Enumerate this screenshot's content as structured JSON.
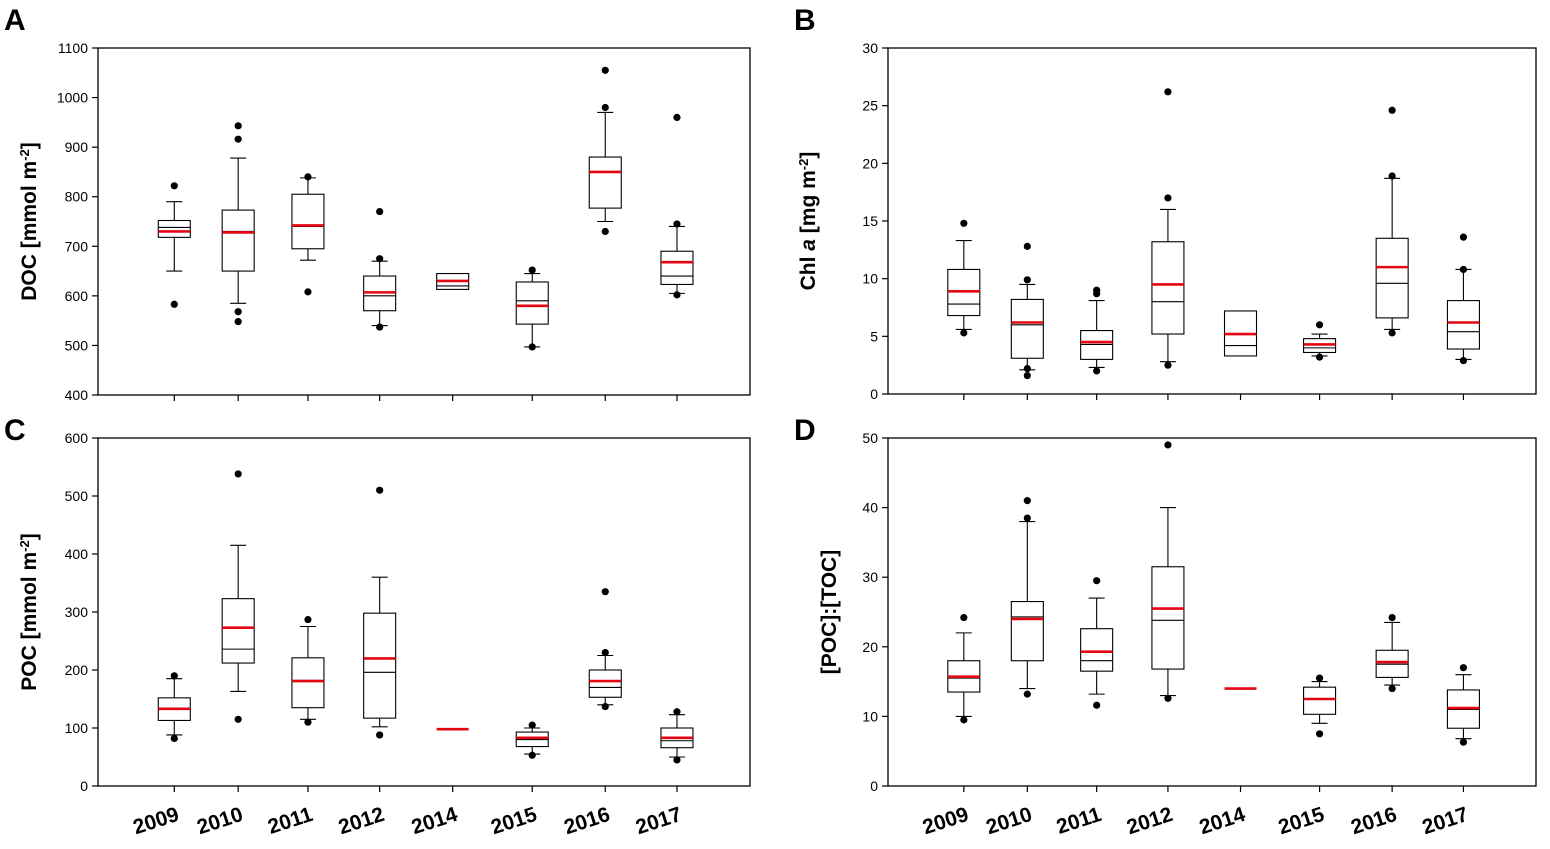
{
  "figure": {
    "categories": [
      "2009",
      "2010",
      "2011",
      "2012",
      "2014",
      "2015",
      "2016",
      "2017"
    ]
  },
  "chart_data": [
    {
      "panel": "A",
      "type": "box",
      "ylabel": {
        "pre": "DOC [mmol m",
        "sup": "-2",
        "post": "]",
        "italic": ""
      },
      "ylim": [
        400,
        1100
      ],
      "yticks": [
        400,
        500,
        600,
        700,
        800,
        900,
        1000,
        1100
      ],
      "categories": [
        "2009",
        "2010",
        "2011",
        "2012",
        "2014",
        "2015",
        "2016",
        "2017"
      ],
      "boxes": [
        {
          "q1": 718,
          "median": 738,
          "mean": 730,
          "q3": 752,
          "wlo": 650,
          "whi": 790,
          "outliers": [
            583,
            822
          ]
        },
        {
          "q1": 650,
          "median": 730,
          "mean": 728,
          "q3": 773,
          "wlo": 585,
          "whi": 878,
          "outliers": [
            548,
            568,
            916,
            943
          ]
        },
        {
          "q1": 695,
          "median": 740,
          "mean": 742,
          "q3": 805,
          "wlo": 672,
          "whi": 838,
          "outliers": [
            608,
            840
          ]
        },
        {
          "q1": 570,
          "median": 600,
          "mean": 607,
          "q3": 640,
          "wlo": 540,
          "whi": 670,
          "outliers": [
            537,
            675,
            770
          ]
        },
        {
          "q1": 613,
          "median": 620,
          "mean": 630,
          "q3": 645,
          "wlo": null,
          "whi": null,
          "outliers": []
        },
        {
          "q1": 543,
          "median": 590,
          "mean": 580,
          "q3": 628,
          "wlo": 497,
          "whi": 645,
          "outliers": [
            497,
            652
          ]
        },
        {
          "q1": 777,
          "median": 850,
          "mean": 850,
          "q3": 880,
          "wlo": 750,
          "whi": 970,
          "outliers": [
            730,
            980,
            1055
          ]
        },
        {
          "q1": 623,
          "median": 640,
          "mean": 668,
          "q3": 690,
          "wlo": 605,
          "whi": 740,
          "outliers": [
            602,
            745,
            960
          ]
        }
      ]
    },
    {
      "panel": "B",
      "type": "box",
      "ylabel": {
        "pre": "Chl ",
        "italic": "a",
        "mid": " [mg m",
        "sup": "-2",
        "post": "]"
      },
      "ylim": [
        0,
        30
      ],
      "yticks": [
        0,
        5,
        10,
        15,
        20,
        25,
        30
      ],
      "categories": [
        "2009",
        "2010",
        "2011",
        "2012",
        "2014",
        "2015",
        "2016",
        "2017"
      ],
      "boxes": [
        {
          "q1": 6.8,
          "median": 7.8,
          "mean": 8.9,
          "q3": 10.8,
          "wlo": 5.6,
          "whi": 13.3,
          "outliers": [
            5.3,
            14.8
          ]
        },
        {
          "q1": 3.1,
          "median": 6.0,
          "mean": 6.2,
          "q3": 8.2,
          "wlo": 2.1,
          "whi": 9.5,
          "outliers": [
            1.6,
            2.2,
            9.9,
            12.8
          ]
        },
        {
          "q1": 3.0,
          "median": 4.3,
          "mean": 4.5,
          "q3": 5.5,
          "wlo": 2.3,
          "whi": 8.1,
          "outliers": [
            2.0,
            8.7,
            9.0
          ]
        },
        {
          "q1": 5.2,
          "median": 8.0,
          "mean": 9.5,
          "q3": 13.2,
          "wlo": 2.8,
          "whi": 16.0,
          "outliers": [
            2.5,
            17.0,
            26.2
          ]
        },
        {
          "q1": 3.3,
          "median": 4.2,
          "mean": 5.2,
          "q3": 7.2,
          "wlo": null,
          "whi": null,
          "outliers": []
        },
        {
          "q1": 3.6,
          "median": 4.0,
          "mean": 4.3,
          "q3": 4.8,
          "wlo": 3.3,
          "whi": 5.2,
          "outliers": [
            3.2,
            6.0
          ]
        },
        {
          "q1": 6.6,
          "median": 9.6,
          "mean": 11.0,
          "q3": 13.5,
          "wlo": 5.6,
          "whi": 18.7,
          "outliers": [
            5.3,
            18.9,
            24.6
          ]
        },
        {
          "q1": 3.9,
          "median": 5.4,
          "mean": 6.2,
          "q3": 8.1,
          "wlo": 3.0,
          "whi": 10.8,
          "outliers": [
            2.9,
            10.8,
            13.6
          ]
        }
      ]
    },
    {
      "panel": "C",
      "type": "box",
      "ylabel": {
        "pre": "POC [mmol m",
        "sup": "-2",
        "post": "]",
        "italic": ""
      },
      "ylim": [
        0,
        600
      ],
      "yticks": [
        0,
        100,
        200,
        300,
        400,
        500,
        600
      ],
      "categories": [
        "2009",
        "2010",
        "2011",
        "2012",
        "2014",
        "2015",
        "2016",
        "2017"
      ],
      "boxes": [
        {
          "q1": 113,
          "median": 133,
          "mean": 133,
          "q3": 152,
          "wlo": 88,
          "whi": 185,
          "outliers": [
            82,
            190
          ]
        },
        {
          "q1": 212,
          "median": 236,
          "mean": 273,
          "q3": 323,
          "wlo": 163,
          "whi": 415,
          "outliers": [
            115,
            538
          ]
        },
        {
          "q1": 135,
          "median": 182,
          "mean": 181,
          "q3": 221,
          "wlo": 115,
          "whi": 275,
          "outliers": [
            110,
            287
          ]
        },
        {
          "q1": 117,
          "median": 196,
          "mean": 220,
          "q3": 298,
          "wlo": 102,
          "whi": 360,
          "outliers": [
            88,
            510
          ]
        },
        {
          "q1": null,
          "median": null,
          "mean": 98,
          "q3": null,
          "wlo": null,
          "whi": null,
          "outliers": []
        },
        {
          "q1": 68,
          "median": 80,
          "mean": 83,
          "q3": 93,
          "wlo": 55,
          "whi": 100,
          "outliers": [
            53,
            105
          ]
        },
        {
          "q1": 153,
          "median": 170,
          "mean": 181,
          "q3": 200,
          "wlo": 140,
          "whi": 225,
          "outliers": [
            137,
            230,
            335
          ]
        },
        {
          "q1": 66,
          "median": 78,
          "mean": 83,
          "q3": 100,
          "wlo": 50,
          "whi": 123,
          "outliers": [
            45,
            128
          ]
        }
      ]
    },
    {
      "panel": "D",
      "type": "box",
      "ylabel": {
        "pre": "[POC]:[TOC]",
        "sup": "",
        "post": "",
        "italic": ""
      },
      "ylim": [
        0,
        50
      ],
      "yticks": [
        0,
        10,
        20,
        30,
        40,
        50
      ],
      "categories": [
        "2009",
        "2010",
        "2011",
        "2012",
        "2014",
        "2015",
        "2016",
        "2017"
      ],
      "boxes": [
        {
          "q1": 13.5,
          "median": 15.5,
          "mean": 15.7,
          "q3": 18.0,
          "wlo": 10.0,
          "whi": 22.0,
          "outliers": [
            9.5,
            24.2
          ]
        },
        {
          "q1": 18.0,
          "median": 24.3,
          "mean": 24.0,
          "q3": 26.5,
          "wlo": 14.0,
          "whi": 38.0,
          "outliers": [
            13.2,
            38.5,
            41.0
          ]
        },
        {
          "q1": 16.5,
          "median": 18.0,
          "mean": 19.3,
          "q3": 22.6,
          "wlo": 13.2,
          "whi": 27.0,
          "outliers": [
            11.6,
            29.5
          ]
        },
        {
          "q1": 16.8,
          "median": 23.8,
          "mean": 25.5,
          "q3": 31.5,
          "wlo": 13.0,
          "whi": 40.0,
          "outliers": [
            12.6,
            49.0
          ]
        },
        {
          "q1": null,
          "median": null,
          "mean": 14.0,
          "q3": null,
          "wlo": null,
          "whi": null,
          "outliers": []
        },
        {
          "q1": 10.3,
          "median": 12.5,
          "mean": 12.5,
          "q3": 14.2,
          "wlo": 9.0,
          "whi": 15.0,
          "outliers": [
            7.5,
            15.5
          ]
        },
        {
          "q1": 15.6,
          "median": 17.5,
          "mean": 17.8,
          "q3": 19.5,
          "wlo": 14.5,
          "whi": 23.5,
          "outliers": [
            14.0,
            24.2
          ]
        },
        {
          "q1": 8.3,
          "median": 11.0,
          "mean": 11.2,
          "q3": 13.8,
          "wlo": 6.8,
          "whi": 16.0,
          "outliers": [
            6.3,
            17.0
          ]
        }
      ]
    }
  ]
}
